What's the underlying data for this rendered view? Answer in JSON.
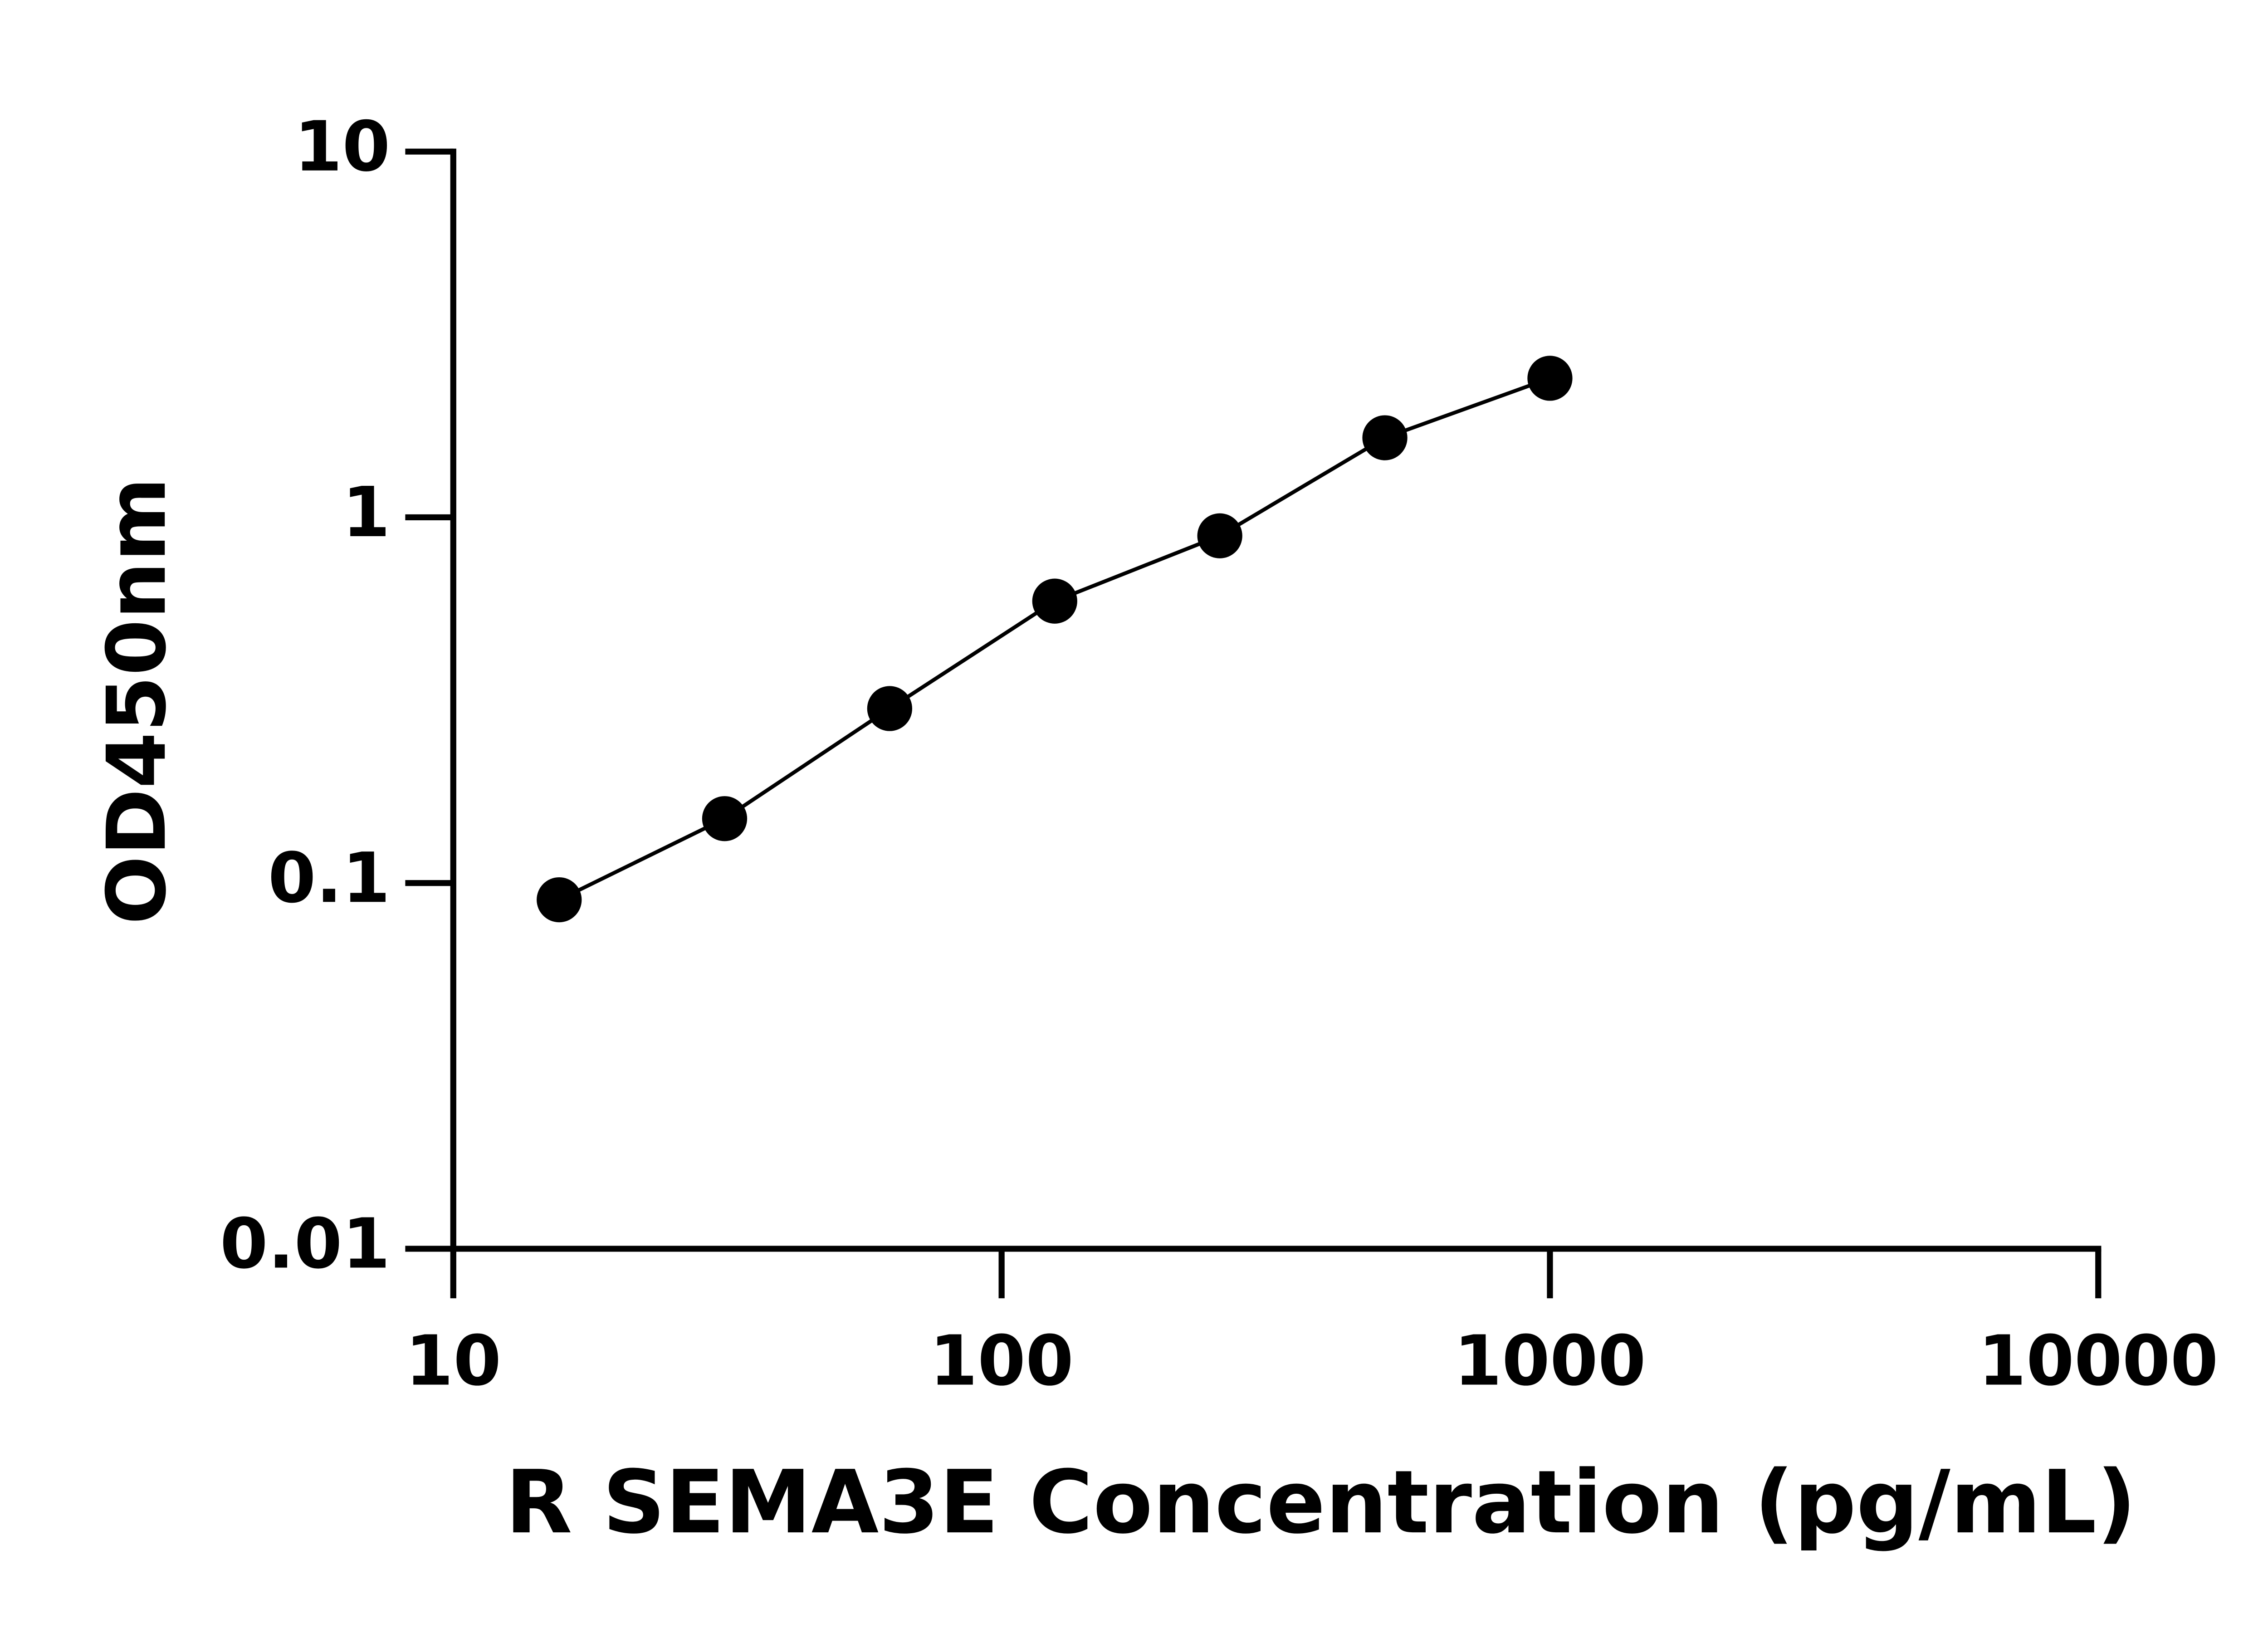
{
  "chart_data": {
    "type": "scatter",
    "x_label": "R SEMA3E Concentration (pg/mL)",
    "y_label": "OD450nm",
    "x_log": true,
    "y_log": true,
    "xlim": [
      10,
      10000
    ],
    "xticks": [
      10,
      100,
      1000,
      10000
    ],
    "ylim": [
      0.01,
      10
    ],
    "yticks": [
      0.01,
      0.1,
      1,
      10
    ],
    "color": "#000000",
    "x": [
      15.6,
      31.25,
      62.5,
      125,
      250,
      500,
      1000
    ],
    "values": [
      0.09,
      0.15,
      0.3,
      0.59,
      0.89,
      1.65,
      2.4
    ]
  }
}
